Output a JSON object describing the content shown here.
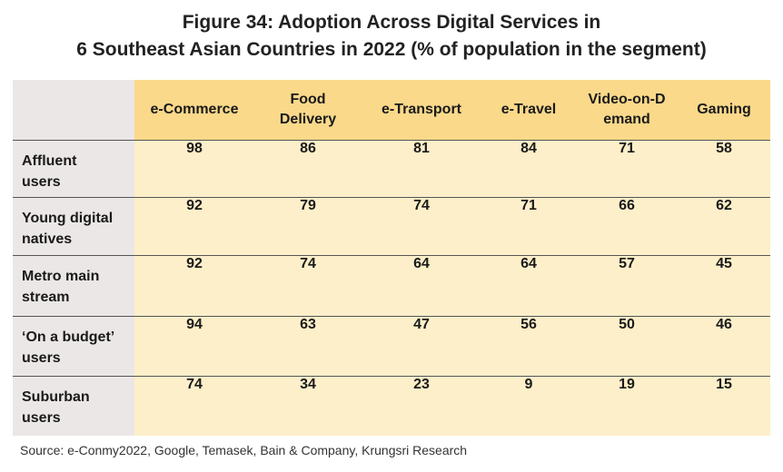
{
  "chart_data": {
    "type": "table",
    "title_line1": "Figure 34: Adoption Across Digital Services in",
    "title_line2": "6 Southeast Asian Countries in 2022 (% of population  in the segment)",
    "columns": [
      "e-Commerce",
      "Food Delivery",
      "e-Transport",
      "e-Travel",
      "Video-on-Demand",
      "Gaming"
    ],
    "rows": [
      {
        "label": "Affluent users",
        "values": [
          98,
          86,
          81,
          84,
          71,
          58
        ]
      },
      {
        "label": "Young digital natives",
        "values": [
          92,
          79,
          74,
          71,
          66,
          62
        ]
      },
      {
        "label": "Metro main stream",
        "values": [
          92,
          74,
          64,
          64,
          57,
          45
        ]
      },
      {
        "label": "‘On a budget’ users",
        "values": [
          94,
          63,
          47,
          56,
          50,
          46
        ]
      },
      {
        "label": "Suburban users",
        "values": [
          74,
          34,
          23,
          9,
          19,
          15
        ]
      }
    ],
    "source": "Source: e-Conmy2022, Google, Temasek, Bain & Company, Krungsri Research"
  },
  "colors": {
    "header_fill": "#fbd98a",
    "cell_fill": "#fdefc9",
    "label_fill": "#ebe7e6",
    "rule": "#555555"
  }
}
